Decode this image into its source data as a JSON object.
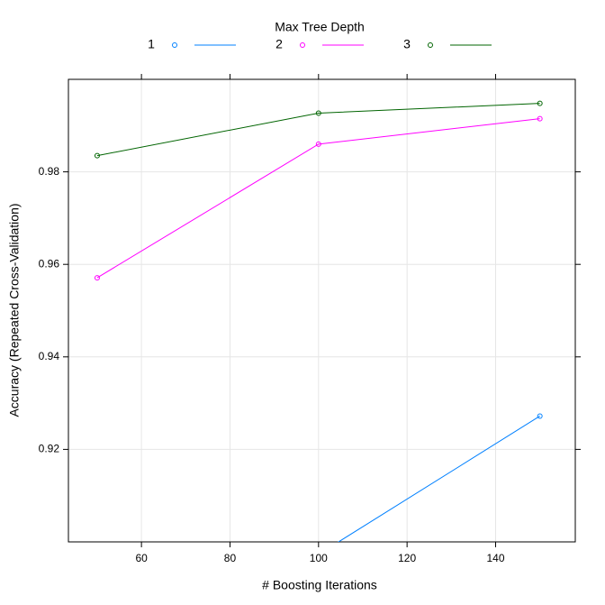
{
  "chart_data": {
    "type": "line",
    "xlabel": "# Boosting Iterations",
    "ylabel": "Accuracy (Repeated Cross-Validation)",
    "legend_title": "Max Tree Depth",
    "legend_position": "top",
    "x": [
      50,
      100,
      150
    ],
    "series": [
      {
        "name": "1",
        "color": "#0080ff",
        "values": [
          null,
          0.8973,
          0.9272
        ]
      },
      {
        "name": "2",
        "color": "#ff00ff",
        "values": [
          0.9571,
          0.986,
          0.9915
        ]
      },
      {
        "name": "3",
        "color": "#006400",
        "values": [
          0.9835,
          0.9927,
          0.9948
        ]
      }
    ],
    "xlim": [
      43.5,
      158
    ],
    "ylim": [
      0.9,
      1.0
    ],
    "xticks": [
      60,
      80,
      100,
      120,
      140
    ],
    "yticks": [
      0.92,
      0.94,
      0.96,
      0.98
    ],
    "grid": true
  }
}
